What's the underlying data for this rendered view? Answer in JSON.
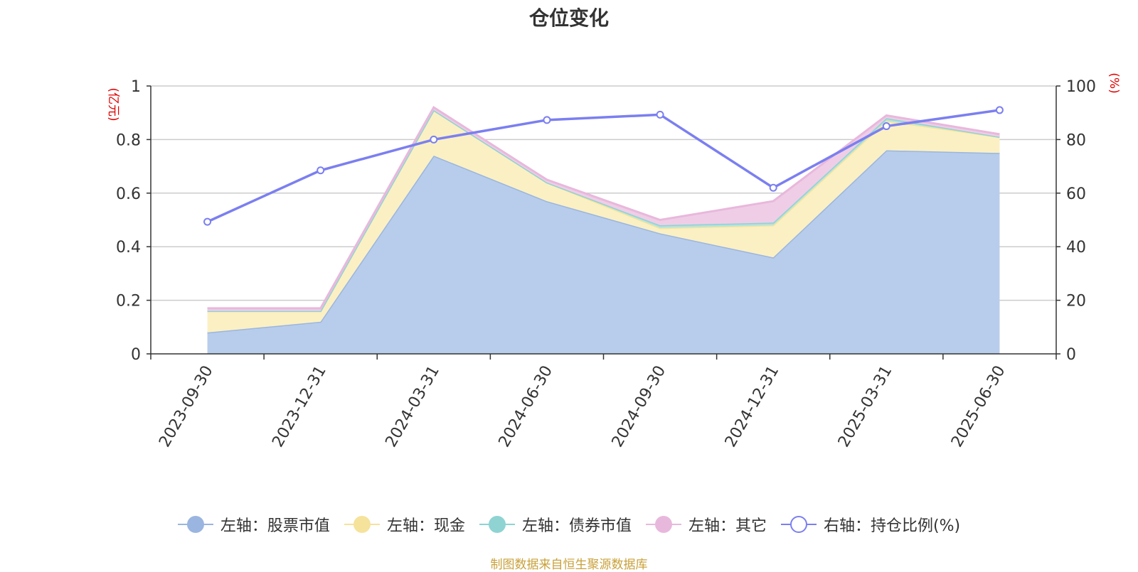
{
  "chart_data": {
    "type": "area",
    "title": "仓位变化",
    "categories": [
      "2023-09-30",
      "2023-12-31",
      "2024-03-31",
      "2024-06-30",
      "2024-09-30",
      "2024-12-31",
      "2025-03-31",
      "2025-06-30"
    ],
    "left_axis": {
      "unit": "(亿元)",
      "ylim": [
        0,
        1
      ],
      "ticks": [
        "0",
        "0.2",
        "0.4",
        "0.6",
        "0.8",
        "1"
      ]
    },
    "right_axis": {
      "unit": "(%)",
      "ylim": [
        0,
        100
      ],
      "ticks": [
        "0",
        "20",
        "40",
        "60",
        "80",
        "100"
      ]
    },
    "stack_series": [
      {
        "name": "左轴：股票市值",
        "values": [
          0.08,
          0.12,
          0.74,
          0.57,
          0.45,
          0.36,
          0.76,
          0.75
        ],
        "color": "#9ab5e0",
        "fill": "#b8cdeb"
      },
      {
        "name": "左轴：现金",
        "values": [
          0.08,
          0.04,
          0.17,
          0.07,
          0.02,
          0.12,
          0.11,
          0.06
        ],
        "color": "#f5e39c",
        "fill": "#fbf0c3"
      },
      {
        "name": "左轴：债券市值",
        "values": [
          0.0,
          0.0,
          0.0,
          0.0,
          0.01,
          0.01,
          0.01,
          0.0
        ],
        "color": "#8fd3d3",
        "fill": "#b2e3e3"
      },
      {
        "name": "左轴：其它",
        "values": [
          0.01,
          0.01,
          0.01,
          0.01,
          0.02,
          0.08,
          0.01,
          0.01
        ],
        "color": "#e8b8dc",
        "fill": "#f0cde6"
      }
    ],
    "line_series": {
      "name": "右轴：持仓比例(%)",
      "values": [
        49.3,
        68.5,
        80.0,
        87.3,
        89.3,
        62.0,
        85.0,
        91.0
      ],
      "color": "#7b7ff0"
    },
    "grid": true,
    "legend_position": "bottom"
  },
  "source": "制图数据来自恒生聚源数据库"
}
